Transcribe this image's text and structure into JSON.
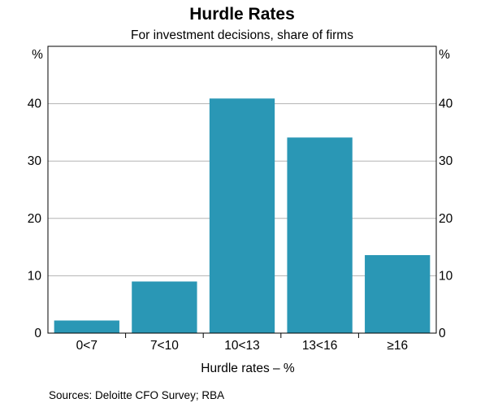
{
  "chart_data": {
    "type": "bar",
    "title": "Hurdle Rates",
    "subtitle": "For investment decisions, share of firms",
    "categories": [
      "0<7",
      "7<10",
      "10<13",
      "13<16",
      "≥16"
    ],
    "values": [
      2.2,
      9.0,
      40.9,
      34.1,
      13.6
    ],
    "xlabel": "Hurdle rates – %",
    "ylabel_left": "%",
    "ylabel_right": "%",
    "ylim": [
      0,
      50
    ],
    "yticks": [
      0,
      10,
      20,
      30,
      40
    ],
    "ytick_labels": [
      "0",
      "10",
      "20",
      "30",
      "40"
    ],
    "grid": true,
    "bar_color": "#2a97b5",
    "source": "Sources:  Deloitte CFO Survey; RBA"
  }
}
